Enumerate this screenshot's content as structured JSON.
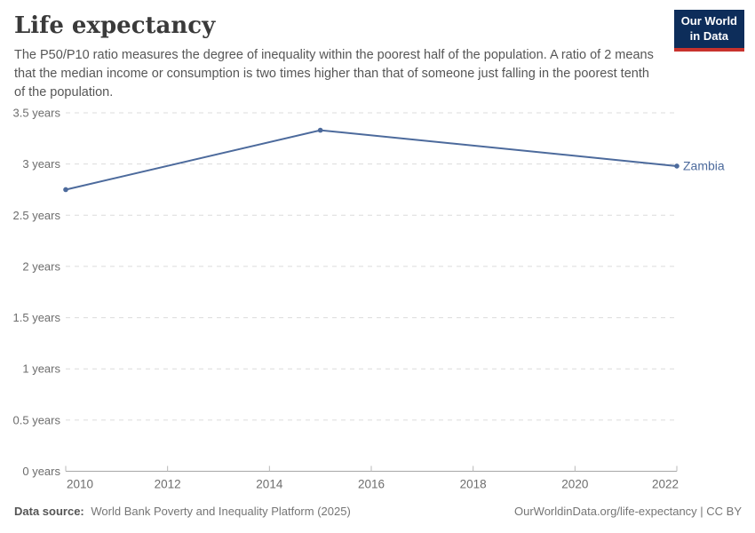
{
  "logo": {
    "line1": "Our World",
    "line2": "in Data"
  },
  "chart_data": {
    "type": "line",
    "title": "Life expectancy",
    "subtitle": "The P50/P10 ratio measures the degree of inequality within the poorest half of the population. A ratio of 2 means that the median income or consumption is two times higher than that of someone just falling in the poorest tenth of the population.",
    "series": [
      {
        "name": "Zambia",
        "color": "#4c6a9c",
        "x": [
          2010,
          2015,
          2022
        ],
        "values": [
          2.75,
          3.33,
          2.98
        ]
      }
    ],
    "xlim": [
      2010,
      2022
    ],
    "ylim": [
      0,
      3.5
    ],
    "xticks": [
      2010,
      2012,
      2014,
      2016,
      2018,
      2020,
      2022
    ],
    "yticks": [
      0,
      0.5,
      1,
      1.5,
      2,
      2.5,
      3,
      3.5
    ],
    "ytick_suffix": " years",
    "grid": "horizontal-dashed",
    "legend_position": "end-of-line-label"
  },
  "footer": {
    "datasource_label": "Data source:",
    "datasource_text": "World Bank Poverty and Inequality Platform (2025)",
    "rights": "OurWorldinData.org/life-expectancy | CC BY"
  },
  "colors": {
    "accent_line": "#4c6a9c",
    "logo_navy": "#0d2d5a",
    "logo_red": "#c8322d",
    "gridline": "#dcdcdc",
    "axis": "#a8a8a8",
    "tick_label": "#6d6d6d"
  }
}
